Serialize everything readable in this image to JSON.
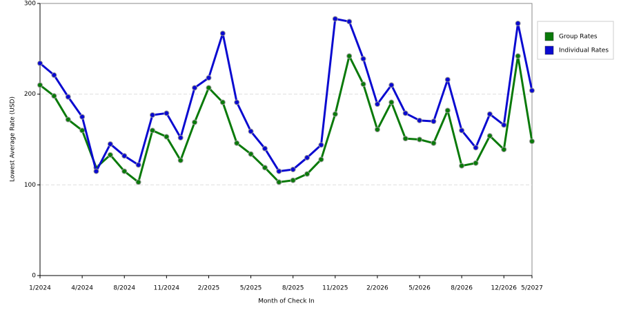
{
  "chart_data": {
    "type": "line",
    "x_label": "Month of Check In",
    "y_label": "Lowest Average Rate (USD)",
    "categories": [
      "1/2024",
      null,
      null,
      "4/2024",
      null,
      null,
      "8/2024",
      null,
      null,
      "11/2024",
      null,
      null,
      "2/2025",
      null,
      null,
      "5/2025",
      null,
      null,
      "8/2025",
      null,
      null,
      "11/2025",
      null,
      null,
      "2/2026",
      null,
      null,
      "5/2026",
      null,
      null,
      "8/2026",
      null,
      null,
      "12/2026",
      null,
      "5/2027"
    ],
    "series": [
      {
        "name": "Group Rates",
        "color": "#0a7a0a",
        "values": [
          210,
          198,
          172,
          160,
          119,
          133,
          115,
          103,
          160,
          153,
          127,
          169,
          207,
          191,
          146,
          134,
          119,
          103,
          105,
          112,
          128,
          178,
          242,
          211,
          161,
          191,
          151,
          150,
          146,
          182,
          121,
          124,
          154,
          139,
          242,
          148
        ]
      },
      {
        "name": "Individual Rates",
        "color": "#0a0ad0",
        "values": [
          234,
          221,
          197,
          175,
          115,
          145,
          132,
          122,
          177,
          179,
          152,
          207,
          218,
          267,
          191,
          159,
          140,
          115,
          117,
          130,
          144,
          283,
          280,
          239,
          189,
          210,
          179,
          171,
          170,
          216,
          160,
          141,
          178,
          166,
          278,
          204
        ]
      }
    ],
    "ylim": [
      0,
      300
    ],
    "yticks": [
      0,
      100,
      200,
      300
    ],
    "grid": true,
    "legend": "right"
  }
}
